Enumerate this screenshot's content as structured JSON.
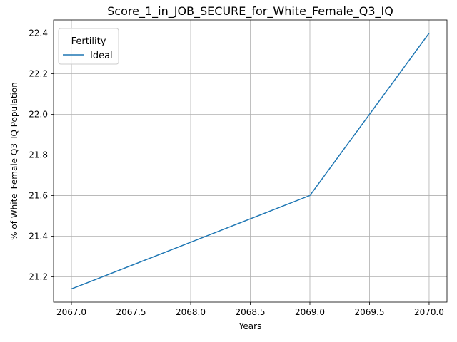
{
  "chart_data": {
    "type": "line",
    "title": "Score_1_in_JOB_SECURE_for_White_Female_Q3_IQ",
    "xlabel": "Years",
    "ylabel": "% of White_Female Q3_IQ Population",
    "xlim": [
      2066.85,
      2070.15
    ],
    "ylim": [
      21.075,
      22.465
    ],
    "x_ticks": [
      2067.0,
      2067.5,
      2068.0,
      2068.5,
      2069.0,
      2069.5,
      2070.0
    ],
    "x_tick_labels": [
      "2067.0",
      "2067.5",
      "2068.0",
      "2068.5",
      "2069.0",
      "2069.5",
      "2070.0"
    ],
    "y_ticks": [
      21.2,
      21.4,
      21.6,
      21.8,
      22.0,
      22.2,
      22.4
    ],
    "y_tick_labels": [
      "21.2",
      "21.4",
      "21.6",
      "21.8",
      "22.0",
      "22.2",
      "22.4"
    ],
    "grid": true,
    "legend": {
      "title": "Fertility",
      "placement": "upper-left"
    },
    "series": [
      {
        "name": "Ideal",
        "color": "#1f77b4",
        "x": [
          2067,
          2068,
          2069,
          2070
        ],
        "y": [
          21.14,
          21.37,
          21.6,
          22.4
        ]
      }
    ]
  }
}
